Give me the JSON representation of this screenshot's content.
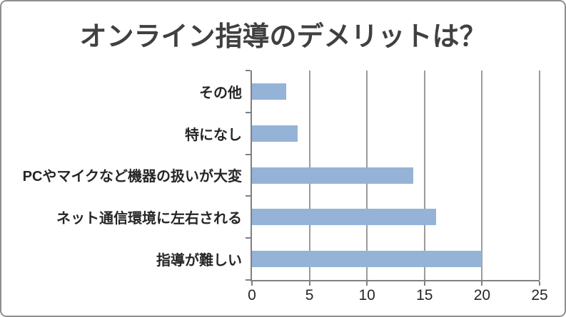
{
  "chart_data": {
    "type": "bar",
    "orientation": "horizontal",
    "title": "オンライン指導のデメリットは？",
    "categories": [
      "その他",
      "特になし",
      "PCやマイクなど機器の扱いが大変",
      "ネット通信環境に左右される",
      "指導が難しい"
    ],
    "values": [
      3,
      4,
      14,
      16,
      20
    ],
    "xlabel": "",
    "ylabel": "",
    "xlim": [
      0,
      25
    ],
    "xticks": [
      0,
      5,
      10,
      15,
      20,
      25
    ],
    "grid": "vertical-gridlines-only",
    "legend": "none",
    "colors": {
      "bar": "#95b3d7",
      "axis": "#808080",
      "gridline": "#9b9b9b",
      "title_text": "#404040",
      "label_text": "#262626",
      "frame_border": "#8f8f8f",
      "background": "#ffffff"
    }
  }
}
